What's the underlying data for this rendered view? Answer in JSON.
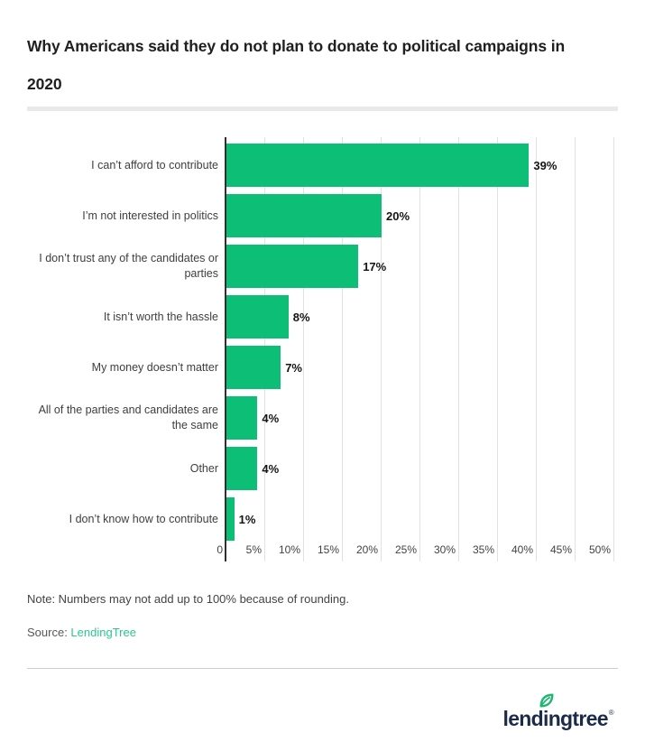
{
  "title": "Why Americans said they do not plan to donate to political campaigns in 2020",
  "chart_data": {
    "type": "bar",
    "orientation": "horizontal",
    "title": "Why Americans said they do not plan to donate to political campaigns in 2020",
    "categories": [
      "I can’t afford to contribute",
      "I’m not interested in politics",
      "I don’t trust any of the candidates or parties",
      "It isn’t worth the hassle",
      "My money doesn’t matter",
      "All of the parties and candidates are the same",
      "Other",
      "I don’t know how to contribute"
    ],
    "values": [
      39,
      20,
      17,
      8,
      7,
      4,
      4,
      1
    ],
    "value_labels": [
      "39%",
      "20%",
      "17%",
      "8%",
      "7%",
      "4%",
      "4%",
      "1%"
    ],
    "xlabel": "",
    "ylabel": "",
    "xlim": [
      0,
      50
    ],
    "x_ticks": [
      "0",
      "5%",
      "10%",
      "15%",
      "20%",
      "25%",
      "30%",
      "35%",
      "40%",
      "45%",
      "50%"
    ],
    "x_tick_values": [
      0,
      5,
      10,
      15,
      20,
      25,
      30,
      35,
      40,
      45,
      50
    ],
    "grid": true,
    "legend": "none",
    "bar_color": "#0dbe76"
  },
  "note": "Note: Numbers may not add up to 100% because of rounding.",
  "source": {
    "label": "Source: ",
    "link_text": "LendingTree"
  },
  "logo": {
    "text_left": "lend",
    "text_i": "i",
    "text_right": "ngtree",
    "registered": "®"
  },
  "colors": {
    "bar_green": "#0dbe76",
    "link_green": "#2bc78f",
    "logo_navy": "#1d2b4a",
    "leaf_green": "#22b573",
    "axis_dark": "#2f2f2f",
    "gridline": "#e1e1e1",
    "divider": "#e9e9e9"
  }
}
